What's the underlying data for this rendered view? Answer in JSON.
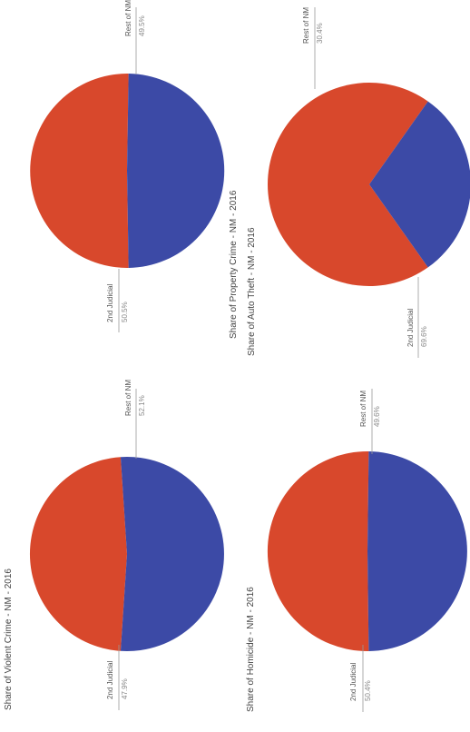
{
  "colors": {
    "slice_primary": "#d8482c",
    "slice_secondary": "#3c4aa6",
    "label_text": "#555555",
    "leader_line": "#999999"
  },
  "chart_data": [
    {
      "type": "pie",
      "title": "Share of Violent Crime - NM - 2016",
      "slices": [
        {
          "label": "2nd Judicial",
          "value_label": "47.9%",
          "value": 47.9
        },
        {
          "label": "Rest of NM",
          "value_label": "52.1%",
          "value": 52.1
        }
      ]
    },
    {
      "type": "pie",
      "title": "Share of Property Crime - NM - 2016",
      "slices": [
        {
          "label": "2nd Judicial",
          "value_label": "50.5%",
          "value": 50.5
        },
        {
          "label": "Rest of NM",
          "value_label": "49.5%",
          "value": 49.5
        }
      ]
    },
    {
      "type": "pie",
      "title": "Share of Homicide - NM - 2016",
      "slices": [
        {
          "label": "2nd Judicial",
          "value_label": "50.4%",
          "value": 50.4
        },
        {
          "label": "Rest of NM",
          "value_label": "49.6%",
          "value": 49.6
        }
      ]
    },
    {
      "type": "pie",
      "title": "Share of Auto Theft - NM - 2016",
      "slices": [
        {
          "label": "2nd Judicial",
          "value_label": "69.6%",
          "value": 69.6
        },
        {
          "label": "Rest of NM",
          "value_label": "30.4%",
          "value": 30.4
        }
      ]
    }
  ]
}
